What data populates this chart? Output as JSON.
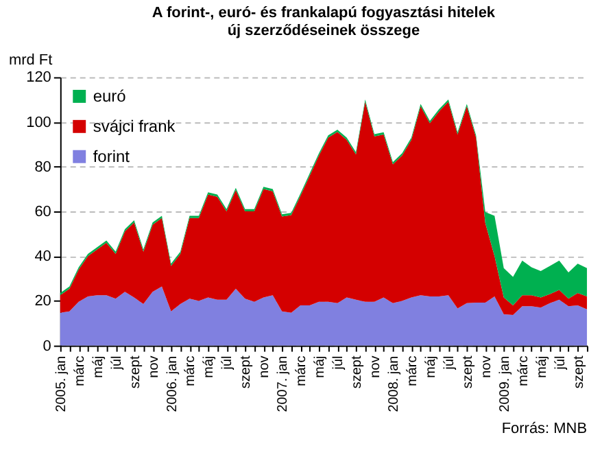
{
  "chart_data": {
    "type": "area",
    "stacked": true,
    "title": "A forint-, euró-  és frankalapú fogyasztási hitelek\núj szerződéseinek összege",
    "ylabel": "mrd Ft",
    "categories": [
      "2005. jan",
      null,
      "márc",
      null,
      "máj",
      null,
      "júl",
      null,
      "szept",
      null,
      "nov",
      null,
      "2006. jan",
      null,
      "márc",
      null,
      "máj",
      null,
      "júl",
      null,
      "szept",
      null,
      "nov",
      null,
      "2007. jan",
      null,
      "márc",
      null,
      "máj",
      null,
      "júl",
      null,
      "szept",
      null,
      "nov",
      null,
      "2008. jan",
      null,
      "márc",
      null,
      "máj",
      null,
      "júl",
      null,
      "szept",
      null,
      "nov",
      null,
      "2009. jan",
      null,
      "márc",
      null,
      "máj",
      null,
      "júl",
      null,
      "szept",
      null
    ],
    "series": [
      {
        "name": "forint",
        "color": "#8080e0",
        "values": [
          14.7,
          15.3,
          19.6,
          22,
          22.5,
          22.5,
          21,
          24,
          21.5,
          18.6,
          24,
          26.4,
          15.3,
          18.6,
          21,
          20,
          21.5,
          20.5,
          20.5,
          25.4,
          21,
          19.6,
          21.5,
          22.5,
          15.3,
          14.7,
          18,
          18,
          19.6,
          19.6,
          19,
          21.5,
          20.5,
          19.6,
          19.6,
          21.5,
          19,
          20,
          21.5,
          22.5,
          22,
          22,
          22.5,
          16.6,
          19,
          19.2,
          19.2,
          22,
          14,
          13.7,
          17.6,
          17.6,
          17,
          19,
          20.5,
          17.6,
          18,
          16.2
        ]
      },
      {
        "name": "svájci frank",
        "color": "#d40000",
        "values": [
          7.8,
          10.1,
          14.4,
          18,
          20.5,
          23.5,
          20,
          27,
          33.5,
          23.4,
          30,
          30.6,
          20.3,
          22.4,
          36,
          37,
          46,
          46,
          39.5,
          44.1,
          39,
          40.4,
          48.5,
          46.5,
          42.4,
          43.6,
          49,
          58,
          65.4,
          73.4,
          76.5,
          70.5,
          65,
          89.4,
          73.9,
          72.9,
          62,
          65,
          70.5,
          84.5,
          77.4,
          82.7,
          86.5,
          77.8,
          88,
          73.8,
          35.6,
          18,
          7.5,
          4.3,
          4.9,
          4.9,
          4.5,
          4,
          4.4,
          3.4,
          5.5,
          5.8
        ]
      },
      {
        "name": "euró",
        "color": "#00b050",
        "values": [
          1,
          1,
          1,
          1,
          1,
          1,
          1,
          1,
          1,
          1,
          1,
          1,
          1,
          1,
          1,
          1,
          1,
          1,
          1,
          1,
          1,
          1,
          1,
          1,
          1,
          1,
          1,
          1,
          1,
          1,
          1,
          1,
          1,
          1,
          1,
          1,
          1,
          1,
          1,
          1,
          1,
          1,
          1,
          1,
          1,
          1,
          4.9,
          18,
          13.1,
          12.7,
          15.5,
          12.5,
          11.8,
          12.6,
          13.1,
          11.7,
          13.1,
          12.6
        ]
      }
    ],
    "ylim": [
      0,
      120
    ],
    "yticks": [
      0,
      20,
      40,
      60,
      80,
      100,
      120
    ],
    "grid": "y",
    "legend": "top left",
    "annotations": [
      "Forrás: MNB"
    ]
  }
}
